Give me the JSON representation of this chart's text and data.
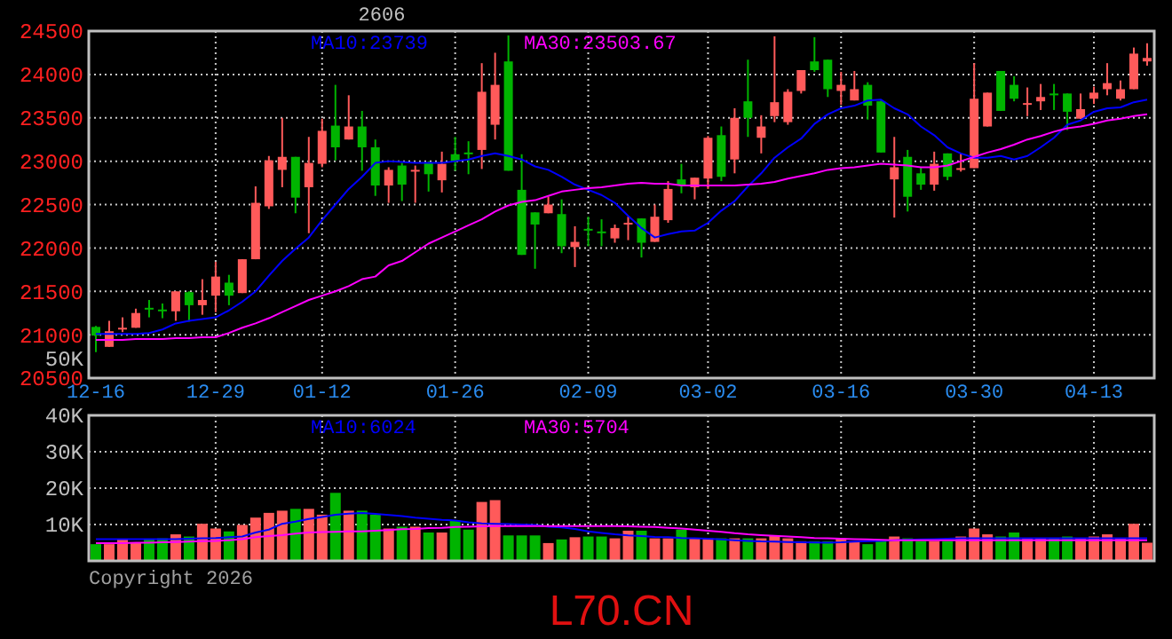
{
  "chart_data": [
    {
      "type": "candlestick",
      "title": "2606",
      "annotations": [
        "50K"
      ],
      "categories": [
        "12-16",
        null,
        null,
        null,
        null,
        null,
        null,
        null,
        null,
        "12-29",
        null,
        null,
        null,
        null,
        null,
        null,
        null,
        "01-12",
        null,
        null,
        null,
        null,
        null,
        null,
        null,
        null,
        null,
        "01-26",
        null,
        null,
        null,
        null,
        null,
        null,
        null,
        null,
        null,
        "02-09",
        null,
        null,
        null,
        null,
        null,
        null,
        null,
        null,
        "03-02",
        null,
        null,
        null,
        null,
        null,
        null,
        null,
        null,
        null,
        "03-16",
        null,
        null,
        null,
        null,
        null,
        null,
        null,
        null,
        null,
        "03-30",
        null,
        null,
        null,
        null,
        null,
        null,
        null,
        null,
        "04-13",
        null,
        null,
        null,
        null
      ],
      "ohlc": [
        [
          21090,
          21100,
          20800,
          20990
        ],
        [
          20860,
          21160,
          20860,
          21040
        ],
        [
          21060,
          21200,
          21030,
          21080
        ],
        [
          21080,
          21300,
          21080,
          21250
        ],
        [
          21310,
          21400,
          21200,
          21290
        ],
        [
          21290,
          21360,
          21190,
          21270
        ],
        [
          21270,
          21500,
          21160,
          21500
        ],
        [
          21490,
          21500,
          21150,
          21340
        ],
        [
          21340,
          21640,
          21230,
          21400
        ],
        [
          21450,
          21840,
          21260,
          21670
        ],
        [
          21600,
          21690,
          21340,
          21450
        ],
        [
          21480,
          21870,
          21480,
          21870
        ],
        [
          21870,
          22710,
          21870,
          22520
        ],
        [
          22480,
          23060,
          22450,
          23010
        ],
        [
          22900,
          23500,
          22700,
          23050
        ],
        [
          23050,
          23050,
          22400,
          22580
        ],
        [
          22700,
          23280,
          22170,
          22980
        ],
        [
          22970,
          23490,
          22930,
          23350
        ],
        [
          23410,
          23880,
          23010,
          23160
        ],
        [
          23250,
          23760,
          23250,
          23400
        ],
        [
          23400,
          23580,
          22890,
          23160
        ],
        [
          23160,
          23250,
          22600,
          22720
        ],
        [
          22720,
          22930,
          22520,
          22900
        ],
        [
          22950,
          22980,
          22540,
          22730
        ],
        [
          22880,
          22950,
          22520,
          22900
        ],
        [
          22980,
          23000,
          22650,
          22850
        ],
        [
          22780,
          23110,
          22640,
          22970
        ],
        [
          23080,
          23280,
          22890,
          23000
        ],
        [
          23100,
          23230,
          22850,
          23080
        ],
        [
          23130,
          24130,
          22910,
          23800
        ],
        [
          23420,
          24250,
          23250,
          23880
        ],
        [
          24150,
          24450,
          22890,
          22890
        ],
        [
          22670,
          23080,
          21920,
          21920
        ],
        [
          22410,
          22410,
          21760,
          22270
        ],
        [
          22400,
          22590,
          22400,
          22500
        ],
        [
          22390,
          22560,
          21940,
          22020
        ],
        [
          22010,
          22250,
          21780,
          22070
        ],
        [
          22220,
          22360,
          22020,
          22200
        ],
        [
          22190,
          22330,
          22020,
          22170
        ],
        [
          22110,
          22270,
          22060,
          22230
        ],
        [
          22280,
          22360,
          22090,
          22290
        ],
        [
          22340,
          22340,
          21890,
          22060
        ],
        [
          22070,
          22500,
          22070,
          22360
        ],
        [
          22320,
          22770,
          22290,
          22680
        ],
        [
          22790,
          22970,
          22630,
          22730
        ],
        [
          22700,
          22810,
          22560,
          22810
        ],
        [
          22800,
          23290,
          22680,
          23270
        ],
        [
          23300,
          23400,
          22770,
          22820
        ],
        [
          23020,
          23610,
          22860,
          23500
        ],
        [
          23690,
          24170,
          23280,
          23500
        ],
        [
          23270,
          23530,
          23090,
          23400
        ],
        [
          23520,
          24440,
          23450,
          23680
        ],
        [
          23450,
          23830,
          23420,
          23800
        ],
        [
          23810,
          24050,
          23780,
          24050
        ],
        [
          24150,
          24430,
          24030,
          24050
        ],
        [
          24170,
          24170,
          23740,
          23830
        ],
        [
          23810,
          24030,
          23650,
          23880
        ],
        [
          23700,
          24040,
          23700,
          23830
        ],
        [
          23880,
          23910,
          23480,
          23640
        ],
        [
          23690,
          23700,
          23100,
          23100
        ],
        [
          22790,
          23280,
          22350,
          22930
        ],
        [
          23050,
          23130,
          22420,
          22590
        ],
        [
          22860,
          22930,
          22670,
          22730
        ],
        [
          22730,
          23110,
          22660,
          22970
        ],
        [
          23090,
          23090,
          22780,
          22820
        ],
        [
          22900,
          23090,
          22880,
          22920
        ],
        [
          22920,
          24130,
          22920,
          23720
        ],
        [
          23400,
          23790,
          23400,
          23790
        ],
        [
          24040,
          24040,
          23580,
          23580
        ],
        [
          23880,
          23980,
          23690,
          23720
        ],
        [
          23660,
          23850,
          23520,
          23670
        ],
        [
          23690,
          23890,
          23590,
          23740
        ],
        [
          23780,
          23890,
          23590,
          23760
        ],
        [
          23780,
          23780,
          23360,
          23570
        ],
        [
          23490,
          23780,
          23490,
          23600
        ],
        [
          23720,
          23860,
          23660,
          23790
        ],
        [
          23830,
          24130,
          23760,
          23900
        ],
        [
          23720,
          23930,
          23700,
          23830
        ],
        [
          23830,
          24310,
          23830,
          24240
        ],
        [
          24150,
          24360,
          24100,
          24190
        ]
      ],
      "colors": [
        "#00b400",
        "#ff5a5a",
        "#ff5a5a",
        "#ff5a5a",
        "#00b400",
        "#00b400",
        "#ff5a5a",
        "#00b400",
        "#ff5a5a",
        "#ff5a5a",
        "#00b400",
        "#ff5a5a",
        "#ff5a5a",
        "#ff5a5a",
        "#ff5a5a",
        "#00b400",
        "#ff5a5a",
        "#ff5a5a",
        "#00b400",
        "#ff5a5a",
        "#00b400",
        "#00b400",
        "#ff5a5a",
        "#00b400",
        "#ff5a5a",
        "#00b400",
        "#ff5a5a",
        "#00b400",
        "#00b400",
        "#ff5a5a",
        "#ff5a5a",
        "#00b400",
        "#00b400",
        "#00b400",
        "#ff5a5a",
        "#00b400",
        "#ff5a5a",
        "#00b400",
        "#00b400",
        "#ff5a5a",
        "#ff5a5a",
        "#00b400",
        "#ff5a5a",
        "#ff5a5a",
        "#00b400",
        "#ff5a5a",
        "#ff5a5a",
        "#00b400",
        "#ff5a5a",
        "#00b400",
        "#ff5a5a",
        "#ff5a5a",
        "#ff5a5a",
        "#ff5a5a",
        "#00b400",
        "#00b400",
        "#ff5a5a",
        "#ff5a5a",
        "#00b400",
        "#00b400",
        "#ff5a5a",
        "#00b400",
        "#00b400",
        "#ff5a5a",
        "#00b400",
        "#ff5a5a",
        "#ff5a5a",
        "#ff5a5a",
        "#00b400",
        "#00b400",
        "#ff5a5a",
        "#ff5a5a",
        "#00b400",
        "#00b400",
        "#ff5a5a",
        "#ff5a5a",
        "#ff5a5a",
        "#ff5a5a",
        "#ff5a5a",
        "#ff5a5a"
      ],
      "series": [
        {
          "name": "MA10:23739",
          "type": "line",
          "color": "#0000ff",
          "values": [
            21010,
            21010,
            21010,
            21010,
            21020,
            21060,
            21130,
            21160,
            21180,
            21200,
            21280,
            21380,
            21500,
            21680,
            21850,
            21990,
            22120,
            22320,
            22500,
            22680,
            22820,
            22980,
            23000,
            22990,
            22980,
            22980,
            22980,
            23000,
            23020,
            23060,
            23090,
            23060,
            23020,
            22940,
            22900,
            22820,
            22730,
            22670,
            22610,
            22520,
            22370,
            22230,
            22120,
            22160,
            22190,
            22200,
            22290,
            22430,
            22540,
            22710,
            22860,
            23040,
            23160,
            23260,
            23430,
            23540,
            23610,
            23640,
            23700,
            23710,
            23610,
            23540,
            23400,
            23300,
            23160,
            23090,
            23040,
            23040,
            23060,
            23020,
            23060,
            23160,
            23270,
            23420,
            23470,
            23570,
            23610,
            23620,
            23680,
            23710
          ]
        },
        {
          "name": "MA30:23503.67",
          "type": "line",
          "color": "#ff00ff",
          "values": [
            20940,
            20940,
            20940,
            20950,
            20950,
            20950,
            20960,
            20960,
            20970,
            20970,
            21020,
            21080,
            21130,
            21190,
            21260,
            21330,
            21400,
            21450,
            21500,
            21560,
            21640,
            21670,
            21800,
            21850,
            21950,
            22050,
            22120,
            22190,
            22260,
            22330,
            22420,
            22490,
            22530,
            22550,
            22600,
            22650,
            22670,
            22690,
            22700,
            22720,
            22740,
            22750,
            22740,
            22740,
            22720,
            22720,
            22720,
            22720,
            22720,
            22730,
            22740,
            22760,
            22800,
            22830,
            22860,
            22900,
            22920,
            22930,
            22950,
            22970,
            22960,
            22950,
            22930,
            22930,
            22950,
            23000,
            23050,
            23100,
            23140,
            23190,
            23250,
            23290,
            23340,
            23380,
            23400,
            23430,
            23470,
            23490,
            23520,
            23540
          ]
        }
      ],
      "ylim": [
        20500,
        24500
      ],
      "yticks": [
        20500,
        21000,
        21500,
        22000,
        22500,
        23000,
        23500,
        24000,
        24500
      ],
      "grid": true,
      "legend": "top"
    },
    {
      "type": "bar",
      "annotations": [
        "Copyright 2026",
        "L70.CN"
      ],
      "tick_labels": "y",
      "categories": [
        null,
        null,
        null,
        null,
        null,
        null,
        null,
        null,
        null,
        null,
        null,
        null,
        null,
        null,
        null,
        null,
        null,
        null,
        null,
        null,
        null,
        null,
        null,
        null,
        null,
        null,
        null,
        null,
        null,
        null,
        null,
        null,
        null,
        null,
        null,
        null,
        null,
        null,
        null,
        null,
        null,
        null,
        null,
        null,
        null,
        null,
        null,
        null,
        null,
        null,
        null,
        null,
        null,
        null,
        null,
        null,
        null,
        null,
        null,
        null,
        null,
        null,
        null,
        null,
        null,
        null,
        null,
        null,
        null,
        null,
        null,
        null,
        null,
        null,
        null,
        null,
        null,
        null,
        null,
        null
      ],
      "series": [
        {
          "type": "bar",
          "values": [
            4600,
            4600,
            5900,
            5000,
            5900,
            6200,
            7300,
            6700,
            10200,
            8900,
            8100,
            9900,
            11900,
            13200,
            13800,
            14300,
            14300,
            12700,
            18700,
            13800,
            13800,
            12700,
            8900,
            9400,
            9400,
            7800,
            7800,
            11100,
            8600,
            16200,
            16700,
            7000,
            7000,
            7000,
            4900,
            5900,
            6500,
            6700,
            6700,
            6200,
            8300,
            8300,
            6200,
            6200,
            8600,
            6200,
            6200,
            6200,
            6200,
            6200,
            6200,
            7000,
            6200,
            5400,
            5400,
            5400,
            6200,
            5400,
            4600,
            5400,
            6700,
            6200,
            5400,
            5400,
            5400,
            6700,
            8900,
            7300,
            6700,
            7800,
            6200,
            6200,
            6200,
            6700,
            6200,
            6700,
            7300,
            6200,
            10200,
            5000
          ],
          "colors": [
            "#00b400",
            "#ff5a5a",
            "#ff5a5a",
            "#ff5a5a",
            "#00b400",
            "#00b400",
            "#ff5a5a",
            "#00b400",
            "#ff5a5a",
            "#ff5a5a",
            "#00b400",
            "#ff5a5a",
            "#ff5a5a",
            "#ff5a5a",
            "#ff5a5a",
            "#00b400",
            "#ff5a5a",
            "#ff5a5a",
            "#00b400",
            "#ff5a5a",
            "#00b400",
            "#00b400",
            "#ff5a5a",
            "#00b400",
            "#ff5a5a",
            "#00b400",
            "#ff5a5a",
            "#00b400",
            "#00b400",
            "#ff5a5a",
            "#ff5a5a",
            "#00b400",
            "#00b400",
            "#00b400",
            "#ff5a5a",
            "#00b400",
            "#ff5a5a",
            "#00b400",
            "#00b400",
            "#ff5a5a",
            "#ff5a5a",
            "#00b400",
            "#ff5a5a",
            "#ff5a5a",
            "#00b400",
            "#ff5a5a",
            "#ff5a5a",
            "#00b400",
            "#ff5a5a",
            "#00b400",
            "#ff5a5a",
            "#ff5a5a",
            "#ff5a5a",
            "#ff5a5a",
            "#00b400",
            "#00b400",
            "#ff5a5a",
            "#ff5a5a",
            "#00b400",
            "#00b400",
            "#ff5a5a",
            "#00b400",
            "#00b400",
            "#ff5a5a",
            "#00b400",
            "#ff5a5a",
            "#ff5a5a",
            "#ff5a5a",
            "#00b400",
            "#00b400",
            "#ff5a5a",
            "#ff5a5a",
            "#00b400",
            "#00b400",
            "#ff5a5a",
            "#ff5a5a",
            "#ff5a5a",
            "#ff5a5a",
            "#ff5a5a",
            "#ff5a5a"
          ]
        },
        {
          "name": "MA10:6024",
          "type": "line",
          "color": "#0000ff",
          "values": [
            6000,
            6000,
            6000,
            6000,
            6000,
            6000,
            6000,
            6100,
            6200,
            6300,
            6500,
            6700,
            7800,
            8600,
            10200,
            10800,
            11500,
            12100,
            12700,
            13000,
            13200,
            12900,
            12600,
            12300,
            11900,
            11600,
            11300,
            11100,
            10600,
            10300,
            10200,
            10100,
            10000,
            9900,
            9400,
            9200,
            8800,
            8100,
            7700,
            7300,
            7000,
            6800,
            6600,
            6500,
            6300,
            6200,
            6100,
            5900,
            5700,
            5500,
            5350,
            5300,
            5200,
            5100,
            5050,
            5000,
            5100,
            5300,
            5400,
            5500,
            5700,
            5800,
            5900,
            6000,
            6100,
            6200,
            6200,
            6200,
            6200,
            6200,
            6200,
            6200,
            6200,
            6200,
            6200,
            6200,
            6200,
            6200,
            6200,
            6200
          ]
        },
        {
          "name": "MA30:5704",
          "type": "line",
          "color": "#ff00ff",
          "values": [
            4900,
            4900,
            4900,
            5000,
            5000,
            5100,
            5200,
            5300,
            5400,
            5500,
            5700,
            6000,
            6500,
            6800,
            7100,
            7500,
            7800,
            7900,
            8000,
            8100,
            8100,
            8300,
            8500,
            8700,
            8800,
            9000,
            9100,
            9300,
            9400,
            9500,
            9600,
            9600,
            9600,
            9600,
            9600,
            9600,
            9600,
            9600,
            9600,
            9600,
            9500,
            9400,
            9300,
            9100,
            8900,
            8600,
            8300,
            8000,
            7600,
            7300,
            7100,
            6900,
            6700,
            6500,
            6300,
            6200,
            6100,
            6000,
            5900,
            5800,
            5700,
            5700,
            5700,
            5700,
            5700,
            5700,
            5700,
            5700,
            5700,
            5700,
            5700,
            5700,
            5700,
            5700,
            5700,
            5700,
            5700,
            5700,
            5700,
            5700
          ]
        }
      ],
      "ylim": [
        0,
        40000
      ],
      "yticks": [
        {
          "value": 10000,
          "label": "10K"
        },
        {
          "value": 20000,
          "label": "20K"
        },
        {
          "value": 30000,
          "label": "30K"
        },
        {
          "value": 40000,
          "label": "40K"
        }
      ],
      "grid": true,
      "legend": "top"
    }
  ]
}
